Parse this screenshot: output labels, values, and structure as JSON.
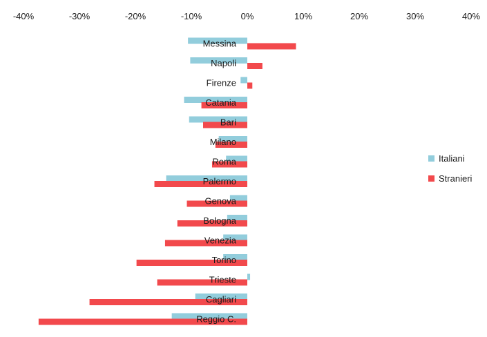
{
  "chart_data": {
    "type": "bar",
    "orientation": "horizontal",
    "title": "",
    "xlabel": "",
    "ylabel": "",
    "xlim": [
      -0.4,
      0.4
    ],
    "x_ticks": [
      {
        "value": -0.4,
        "label": "-40%"
      },
      {
        "value": -0.3,
        "label": "-30%"
      },
      {
        "value": -0.2,
        "label": "-20%"
      },
      {
        "value": -0.1,
        "label": "-10%"
      },
      {
        "value": 0.0,
        "label": "0%"
      },
      {
        "value": 0.1,
        "label": "10%"
      },
      {
        "value": 0.2,
        "label": "20%"
      },
      {
        "value": 0.3,
        "label": "30%"
      },
      {
        "value": 0.4,
        "label": "40%"
      }
    ],
    "tick_position": "top",
    "grid": false,
    "legend_position": "right",
    "categories": [
      "Messina",
      "Napoli",
      "Firenze",
      "Catania",
      "Bari",
      "Milano",
      "Roma",
      "Palermo",
      "Genova",
      "Bologna",
      "Venezia",
      "Torino",
      "Trieste",
      "Cagliari",
      "Reggio C."
    ],
    "series": [
      {
        "name": "Italiani",
        "color": "#92cddc",
        "values": [
          -0.106,
          -0.102,
          -0.012,
          -0.113,
          -0.104,
          -0.051,
          -0.038,
          -0.145,
          -0.031,
          -0.036,
          -0.043,
          -0.043,
          0.005,
          -0.093,
          -0.135
        ]
      },
      {
        "name": "Stranieri",
        "color": "#f2494c",
        "values": [
          0.087,
          0.027,
          0.009,
          -0.082,
          -0.079,
          -0.057,
          -0.063,
          -0.166,
          -0.108,
          -0.125,
          -0.147,
          -0.198,
          -0.161,
          -0.282,
          -0.373
        ]
      }
    ]
  }
}
